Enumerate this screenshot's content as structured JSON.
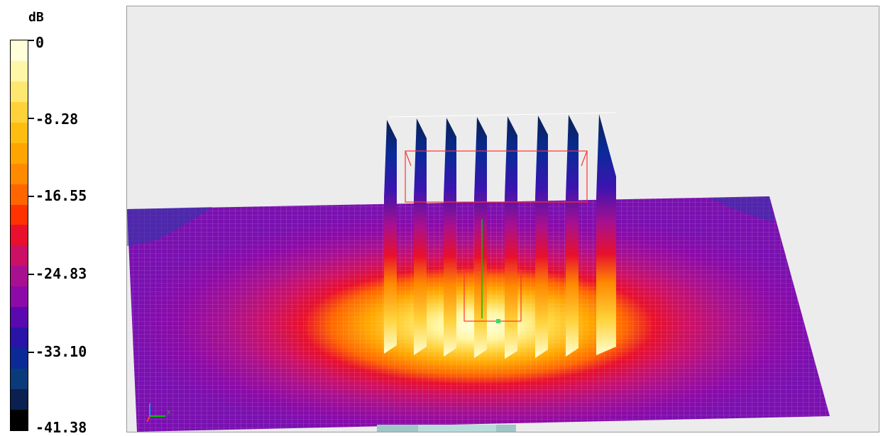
{
  "legend": {
    "unit": "dB",
    "tick_labels": [
      "0",
      "-8.28",
      "-16.55",
      "-24.83",
      "-33.10",
      "-41.38"
    ],
    "colors": [
      "#ffffd9",
      "#fff6a8",
      "#ffe870",
      "#ffd23a",
      "#ffbd12",
      "#ffa500",
      "#ff8a00",
      "#ff6600",
      "#ff3300",
      "#e8102c",
      "#cc1066",
      "#a8108f",
      "#8c0aa8",
      "#5a08b0",
      "#2a14a8",
      "#0a2a98",
      "#0a3a7a",
      "#0a2050",
      "#000000"
    ]
  },
  "viewport": {
    "colors": {
      "background": "#ececec",
      "field_low": "#8c0aa8",
      "field_peak": "#ffffd9",
      "fin_back": "#0a2050",
      "outline": "#ff3333",
      "axis_x": "#00c000",
      "axis_y": "#00a0ff"
    },
    "axis_label": "x"
  }
}
